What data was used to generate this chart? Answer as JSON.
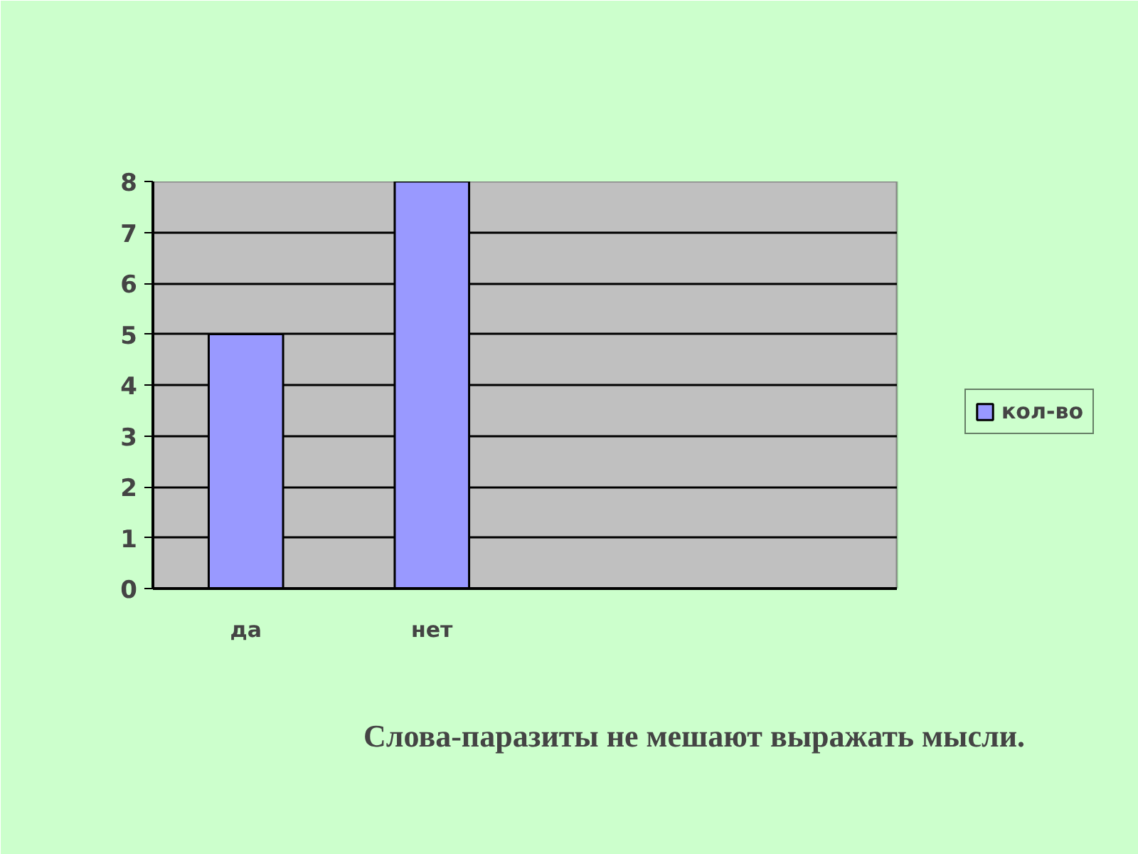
{
  "chart_data": {
    "type": "bar",
    "title": "Слова-паразиты не мешают выражать мысли.",
    "categories": [
      "да",
      "нет",
      null,
      null
    ],
    "series": [
      {
        "name": "кол-во",
        "color": "#9999ff",
        "values": [
          5,
          8,
          null,
          null
        ]
      }
    ],
    "ylim": [
      0,
      8
    ],
    "yticks": [
      0,
      1,
      2,
      3,
      4,
      5,
      6,
      7,
      8
    ],
    "grid": "y",
    "legend": "right"
  }
}
